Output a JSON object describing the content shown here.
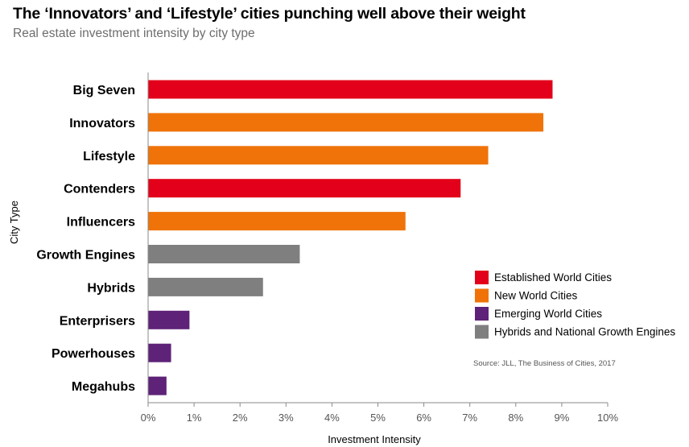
{
  "title": "The ‘Innovators’ and ‘Lifestyle’ cities punching well above their weight",
  "subtitle": "Real estate investment intensity by city type",
  "source": "Source: JLL, The Business of Cities, 2017",
  "colors": {
    "established": "#e2001a",
    "new": "#ef7309",
    "emerging": "#5e2278",
    "hybrids": "#7f7f7f"
  },
  "chart_data": {
    "type": "bar",
    "orientation": "horizontal",
    "xlabel": "Investment Intensity",
    "ylabel": "City Type",
    "xlim": [
      0,
      10
    ],
    "x_tick_labels": [
      "0%",
      "1%",
      "2%",
      "3%",
      "4%",
      "5%",
      "6%",
      "7%",
      "8%",
      "9%",
      "10%"
    ],
    "grid": false,
    "legend_position": "right",
    "categories": [
      "Big Seven",
      "Innovators",
      "Lifestyle",
      "Contenders",
      "Influencers",
      "Growth Engines",
      "Hybrids",
      "Enterprisers",
      "Powerhouses",
      "Megahubs"
    ],
    "values": [
      8.8,
      8.6,
      7.4,
      6.8,
      5.6,
      3.3,
      2.5,
      0.9,
      0.5,
      0.4
    ],
    "groups": [
      "established",
      "new",
      "new",
      "established",
      "new",
      "hybrids",
      "hybrids",
      "emerging",
      "emerging",
      "emerging"
    ],
    "legend": [
      {
        "key": "established",
        "label": "Established World Cities"
      },
      {
        "key": "new",
        "label": "New World Cities"
      },
      {
        "key": "emerging",
        "label": "Emerging World Cities"
      },
      {
        "key": "hybrids",
        "label": "Hybrids and National Growth Engines"
      }
    ]
  }
}
